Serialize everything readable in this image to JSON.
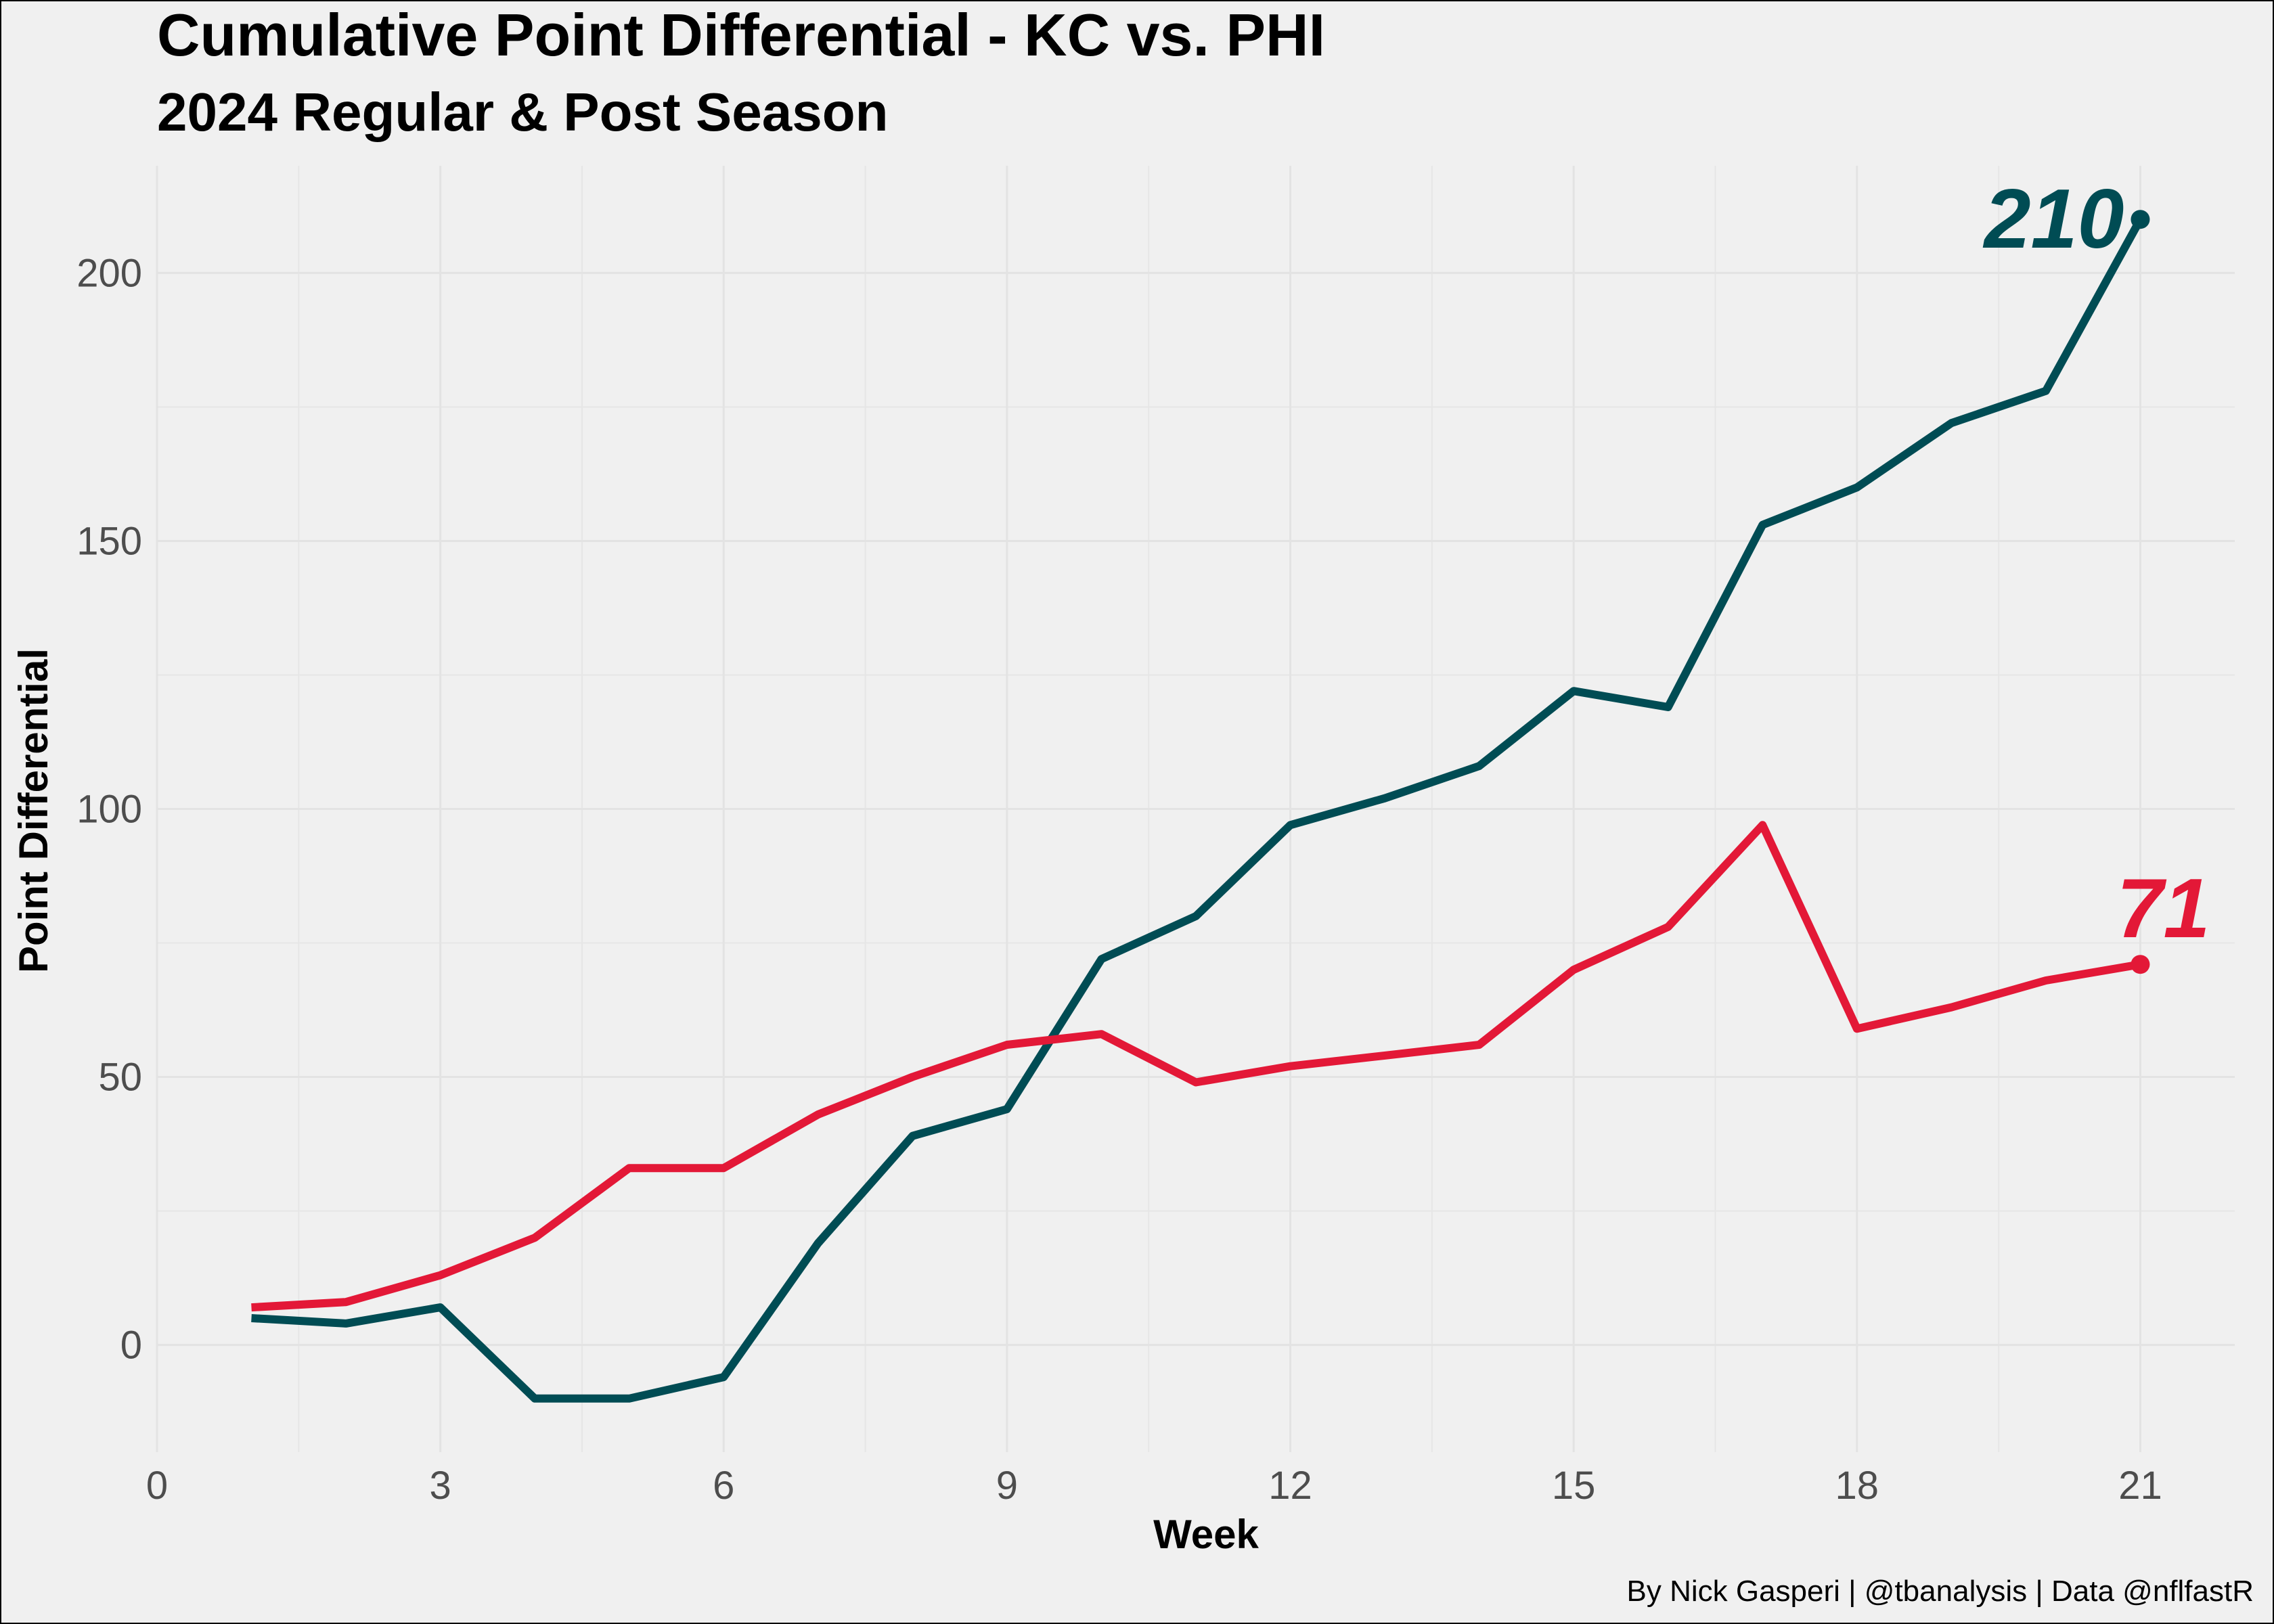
{
  "chart_data": {
    "type": "line",
    "title": "Cumulative Point Differential - KC vs. PHI",
    "subtitle": "2024 Regular & Post Season",
    "xlabel": "Week",
    "ylabel": "Point Differential",
    "caption": "By Nick Gasperi | @tbanalysis | Data @nflfastR",
    "xlim": [
      0,
      22
    ],
    "ylim": [
      -20,
      220
    ],
    "x_ticks": [
      "0",
      "3",
      "6",
      "9",
      "12",
      "15",
      "18",
      "21"
    ],
    "y_ticks": [
      "0",
      "50",
      "100",
      "150",
      "200"
    ],
    "grid": true,
    "legend": "none",
    "series": [
      {
        "color": "#004c54",
        "end_label": "210",
        "x": [
          1,
          2,
          3,
          4,
          5,
          6,
          7,
          8,
          9,
          10,
          11,
          12,
          13,
          14,
          15,
          16,
          17,
          18,
          19,
          20,
          21
        ],
        "values": [
          5,
          4,
          7,
          -10,
          -10,
          -6,
          19,
          39,
          44,
          72,
          80,
          97,
          102,
          108,
          122,
          119,
          153,
          160,
          172,
          178,
          210
        ]
      },
      {
        "color": "#e31837",
        "end_label": "71",
        "x": [
          1,
          2,
          3,
          4,
          5,
          6,
          7,
          8,
          9,
          10,
          11,
          12,
          13,
          14,
          15,
          16,
          17,
          18,
          19,
          20,
          21
        ],
        "values": [
          7,
          8,
          13,
          20,
          33,
          33,
          43,
          50,
          56,
          58,
          49,
          52,
          54,
          56,
          70,
          78,
          97,
          59,
          63,
          68,
          71
        ]
      }
    ]
  }
}
